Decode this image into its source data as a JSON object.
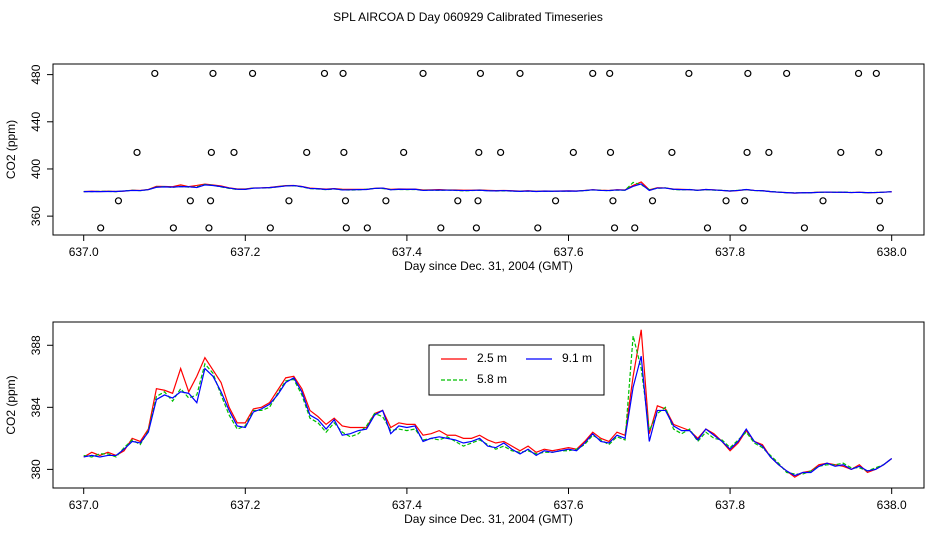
{
  "chart_data": [
    {
      "type": "line",
      "title": "SPL AIRCOA D  Day 060929  Calibrated Timeseries",
      "xlabel": "Day since Dec. 31, 2004 (GMT)",
      "ylabel": "CO2 (ppm)",
      "xlim": [
        636.962,
        638.04
      ],
      "ylim": [
        344,
        489
      ],
      "xticks": [
        {
          "value": 637,
          "label": "637.0"
        },
        {
          "value": 637.2,
          "label": "637.2"
        },
        {
          "value": 637.4,
          "label": "637.4"
        },
        {
          "value": 637.6,
          "label": "637.6"
        },
        {
          "value": 637.8,
          "label": "637.8"
        },
        {
          "value": 638,
          "label": "638.0"
        }
      ],
      "yticks": [
        360,
        400,
        440,
        480
      ],
      "x": [
        637.0,
        637.01,
        637.02,
        637.03,
        637.04,
        637.05,
        637.06,
        637.07,
        637.08,
        637.09,
        637.1,
        637.11,
        637.12,
        637.13,
        637.14,
        637.15,
        637.16,
        637.17,
        637.18,
        637.19,
        637.2,
        637.21,
        637.22,
        637.23,
        637.24,
        637.25,
        637.26,
        637.27,
        637.28,
        637.29,
        637.3,
        637.31,
        637.32,
        637.33,
        637.34,
        637.35,
        637.36,
        637.37,
        637.38,
        637.39,
        637.4,
        637.41,
        637.42,
        637.43,
        637.44,
        637.45,
        637.46,
        637.47,
        637.48,
        637.49,
        637.5,
        637.51,
        637.52,
        637.53,
        637.54,
        637.55,
        637.56,
        637.57,
        637.58,
        637.59,
        637.6,
        637.61,
        637.62,
        637.63,
        637.64,
        637.65,
        637.66,
        637.67,
        637.68,
        637.69,
        637.7,
        637.71,
        637.72,
        637.73,
        637.74,
        637.75,
        637.76,
        637.77,
        637.78,
        637.79,
        637.8,
        637.81,
        637.82,
        637.83,
        637.84,
        637.85,
        637.86,
        637.87,
        637.88,
        637.89,
        637.9,
        637.91,
        637.92,
        637.93,
        637.94,
        637.95,
        637.96,
        637.97,
        637.98,
        637.99,
        638.0
      ],
      "series": [
        {
          "color": "#ff0000",
          "style": "solid",
          "values": [
            380.8,
            381.1,
            380.9,
            381.1,
            380.9,
            381.2,
            382.0,
            381.8,
            382.6,
            385.2,
            385.1,
            384.9,
            386.5,
            385.0,
            386.0,
            387.2,
            386.4,
            385.6,
            384.0,
            383.0,
            383.0,
            383.9,
            384.0,
            384.3,
            385.1,
            385.9,
            386.0,
            385.2,
            383.8,
            383.4,
            382.9,
            383.3,
            382.8,
            382.7,
            382.7,
            382.7,
            383.6,
            383.8,
            382.7,
            383.0,
            382.9,
            382.9,
            382.2,
            382.3,
            382.5,
            382.2,
            382.2,
            382.0,
            382.0,
            382.2,
            381.9,
            381.7,
            381.8,
            381.5,
            381.2,
            381.5,
            381.1,
            381.3,
            381.2,
            381.3,
            381.4,
            381.3,
            381.8,
            382.4,
            382.0,
            381.8,
            382.4,
            382.2,
            386.0,
            389.0,
            382.3,
            384.1,
            383.9,
            382.9,
            382.7,
            382.5,
            382.0,
            382.6,
            382.3,
            381.8,
            381.2,
            381.7,
            382.5,
            381.8,
            381.6,
            380.8,
            380.3,
            379.9,
            379.5,
            379.8,
            379.9,
            380.3,
            380.4,
            380.3,
            380.2,
            380.0,
            380.3,
            379.8,
            380.0,
            380.3,
            380.7
          ]
        },
        {
          "color": "#00c000",
          "style": "dashed",
          "values": [
            380.9,
            380.8,
            381.0,
            381.0,
            380.8,
            381.4,
            381.9,
            381.6,
            382.5,
            384.7,
            385.0,
            384.4,
            385.2,
            384.6,
            384.8,
            386.8,
            386.2,
            384.8,
            383.5,
            382.6,
            382.8,
            383.8,
            383.8,
            384.0,
            384.9,
            385.7,
            385.8,
            384.8,
            383.3,
            383.0,
            382.4,
            383.0,
            382.4,
            382.1,
            382.3,
            382.8,
            383.6,
            383.4,
            382.5,
            382.6,
            382.5,
            382.6,
            381.9,
            382.0,
            381.9,
            382.1,
            381.8,
            381.5,
            381.7,
            381.9,
            381.6,
            381.3,
            381.5,
            381.2,
            381.1,
            381.2,
            381.0,
            381.1,
            381.1,
            381.2,
            381.2,
            381.3,
            381.6,
            382.2,
            381.9,
            381.6,
            382.1,
            381.9,
            388.6,
            386.5,
            382.5,
            383.6,
            384.0,
            382.6,
            382.3,
            382.6,
            381.8,
            382.4,
            382.0,
            381.9,
            381.4,
            381.9,
            382.4,
            381.7,
            381.4,
            380.9,
            380.4,
            379.8,
            379.7,
            379.7,
            379.9,
            380.2,
            380.3,
            380.3,
            380.4,
            380.1,
            380.1,
            379.9,
            380.1,
            380.3,
            380.7
          ]
        },
        {
          "color": "#0000ff",
          "style": "solid",
          "values": [
            380.8,
            380.9,
            380.8,
            380.9,
            380.9,
            381.3,
            381.8,
            381.7,
            382.4,
            384.5,
            384.8,
            384.6,
            385.0,
            384.9,
            384.3,
            386.5,
            386.0,
            385.0,
            383.8,
            382.8,
            382.7,
            383.7,
            383.9,
            384.2,
            384.8,
            385.6,
            385.9,
            385.0,
            383.5,
            383.2,
            382.6,
            383.2,
            382.2,
            382.3,
            382.5,
            382.6,
            383.5,
            383.8,
            382.3,
            382.8,
            382.7,
            382.8,
            381.8,
            382.0,
            382.1,
            382.0,
            381.9,
            381.7,
            381.8,
            382.0,
            381.5,
            381.4,
            381.7,
            381.3,
            381.0,
            381.3,
            380.9,
            381.2,
            381.1,
            381.2,
            381.3,
            381.2,
            381.7,
            382.3,
            381.8,
            381.7,
            382.2,
            382.0,
            385.3,
            387.3,
            381.8,
            383.8,
            383.8,
            382.8,
            382.5,
            382.5,
            381.9,
            382.6,
            382.2,
            381.8,
            381.3,
            381.8,
            382.6,
            381.8,
            381.5,
            380.8,
            380.3,
            379.9,
            379.6,
            379.8,
            379.8,
            380.2,
            380.4,
            380.2,
            380.3,
            380.0,
            380.2,
            379.9,
            380.0,
            380.3,
            380.7
          ]
        }
      ],
      "points": {
        "color": "#000000",
        "x": [
          637.088,
          637.16,
          637.209,
          637.298,
          637.321,
          637.42,
          637.491,
          637.54,
          637.63,
          637.651,
          637.749,
          637.822,
          637.87,
          637.959,
          637.981,
          637.066,
          637.158,
          637.186,
          637.276,
          637.322,
          637.396,
          637.489,
          637.516,
          637.606,
          637.652,
          637.728,
          637.821,
          637.848,
          637.937,
          637.984,
          637.043,
          637.132,
          637.157,
          637.254,
          637.324,
          637.374,
          637.463,
          637.488,
          637.584,
          637.655,
          637.704,
          637.795,
          637.818,
          637.915,
          637.985,
          637.021,
          637.111,
          637.155,
          637.231,
          637.325,
          637.351,
          637.442,
          637.486,
          637.562,
          637.657,
          637.682,
          637.772,
          637.816,
          637.892,
          637.986
        ],
        "y": [
          481,
          481,
          481,
          481,
          481,
          481,
          481,
          481,
          481,
          481,
          481,
          481,
          481,
          481,
          481,
          414,
          414,
          414,
          414,
          414,
          414,
          414,
          414,
          414,
          414,
          414,
          414,
          414,
          414,
          414,
          373,
          373,
          373,
          373,
          373,
          373,
          373,
          373,
          373,
          373,
          373,
          373,
          373,
          373,
          373,
          350,
          350,
          350,
          350,
          350,
          350,
          350,
          350,
          350,
          350,
          350,
          350,
          350,
          350,
          350
        ]
      }
    },
    {
      "type": "line",
      "xlabel": "Day since Dec. 31, 2004 (GMT)",
      "ylabel": "CO2 (ppm)",
      "xlim": [
        636.962,
        638.04
      ],
      "ylim": [
        378.8,
        389.5
      ],
      "xticks": [
        {
          "value": 637,
          "label": "637.0"
        },
        {
          "value": 637.2,
          "label": "637.2"
        },
        {
          "value": 637.4,
          "label": "637.4"
        },
        {
          "value": 637.6,
          "label": "637.6"
        },
        {
          "value": 637.8,
          "label": "637.8"
        },
        {
          "value": 638,
          "label": "638.0"
        }
      ],
      "yticks": [
        380,
        384,
        388
      ],
      "legend": "top",
      "x": [
        637.0,
        637.01,
        637.02,
        637.03,
        637.04,
        637.05,
        637.06,
        637.07,
        637.08,
        637.09,
        637.1,
        637.11,
        637.12,
        637.13,
        637.14,
        637.15,
        637.16,
        637.17,
        637.18,
        637.19,
        637.2,
        637.21,
        637.22,
        637.23,
        637.24,
        637.25,
        637.26,
        637.27,
        637.28,
        637.29,
        637.3,
        637.31,
        637.32,
        637.33,
        637.34,
        637.35,
        637.36,
        637.37,
        637.38,
        637.39,
        637.4,
        637.41,
        637.42,
        637.43,
        637.44,
        637.45,
        637.46,
        637.47,
        637.48,
        637.49,
        637.5,
        637.51,
        637.52,
        637.53,
        637.54,
        637.55,
        637.56,
        637.57,
        637.58,
        637.59,
        637.6,
        637.61,
        637.62,
        637.63,
        637.64,
        637.65,
        637.66,
        637.67,
        637.68,
        637.69,
        637.7,
        637.71,
        637.72,
        637.73,
        637.74,
        637.75,
        637.76,
        637.77,
        637.78,
        637.79,
        637.8,
        637.81,
        637.82,
        637.83,
        637.84,
        637.85,
        637.86,
        637.87,
        637.88,
        637.89,
        637.9,
        637.91,
        637.92,
        637.93,
        637.94,
        637.95,
        637.96,
        637.97,
        637.98,
        637.99,
        638.0
      ],
      "series": [
        {
          "name": "2.5 m",
          "color": "#ff0000",
          "style": "solid",
          "values": [
            380.8,
            381.1,
            380.9,
            381.1,
            380.9,
            381.2,
            382.0,
            381.8,
            382.6,
            385.2,
            385.1,
            384.9,
            386.5,
            385.0,
            386.0,
            387.2,
            386.4,
            385.6,
            384.0,
            383.0,
            383.0,
            383.9,
            384.0,
            384.3,
            385.1,
            385.9,
            386.0,
            385.2,
            383.8,
            383.4,
            382.9,
            383.3,
            382.8,
            382.7,
            382.7,
            382.7,
            383.6,
            383.8,
            382.7,
            383.0,
            382.9,
            382.9,
            382.2,
            382.3,
            382.5,
            382.2,
            382.2,
            382.0,
            382.0,
            382.2,
            381.9,
            381.7,
            381.8,
            381.5,
            381.2,
            381.5,
            381.1,
            381.3,
            381.2,
            381.3,
            381.4,
            381.3,
            381.8,
            382.4,
            382.0,
            381.8,
            382.4,
            382.2,
            386.0,
            389.0,
            382.3,
            384.1,
            383.9,
            382.9,
            382.7,
            382.5,
            382.0,
            382.6,
            382.3,
            381.8,
            381.2,
            381.7,
            382.5,
            381.8,
            381.6,
            380.8,
            380.3,
            379.9,
            379.5,
            379.8,
            379.9,
            380.3,
            380.4,
            380.3,
            380.2,
            380.0,
            380.3,
            379.8,
            380.0,
            380.3,
            380.7
          ]
        },
        {
          "name": "5.8 m",
          "color": "#00c000",
          "style": "dashed",
          "values": [
            380.9,
            380.8,
            381.0,
            381.0,
            380.8,
            381.4,
            381.9,
            381.6,
            382.5,
            384.7,
            385.0,
            384.4,
            385.2,
            384.6,
            384.8,
            386.8,
            386.2,
            384.8,
            383.5,
            382.6,
            382.8,
            383.8,
            383.8,
            384.0,
            384.9,
            385.7,
            385.8,
            384.8,
            383.3,
            383.0,
            382.4,
            383.0,
            382.4,
            382.1,
            382.3,
            382.8,
            383.6,
            383.4,
            382.5,
            382.6,
            382.5,
            382.6,
            381.9,
            382.0,
            381.9,
            382.1,
            381.8,
            381.5,
            381.7,
            381.9,
            381.6,
            381.3,
            381.5,
            381.2,
            381.1,
            381.2,
            381.0,
            381.1,
            381.1,
            381.2,
            381.2,
            381.3,
            381.6,
            382.2,
            381.9,
            381.6,
            382.1,
            381.9,
            388.6,
            386.5,
            382.5,
            383.6,
            384.0,
            382.6,
            382.3,
            382.6,
            381.8,
            382.4,
            382.0,
            381.9,
            381.4,
            381.9,
            382.4,
            381.7,
            381.4,
            380.9,
            380.4,
            379.8,
            379.7,
            379.7,
            379.9,
            380.2,
            380.3,
            380.3,
            380.4,
            380.1,
            380.1,
            379.9,
            380.1,
            380.3,
            380.7
          ]
        },
        {
          "name": "9.1 m",
          "color": "#0000ff",
          "style": "solid",
          "values": [
            380.8,
            380.9,
            380.8,
            380.9,
            380.9,
            381.3,
            381.8,
            381.7,
            382.4,
            384.5,
            384.8,
            384.6,
            385.0,
            384.9,
            384.3,
            386.5,
            386.0,
            385.0,
            383.8,
            382.8,
            382.7,
            383.7,
            383.9,
            384.2,
            384.8,
            385.6,
            385.9,
            385.0,
            383.5,
            383.2,
            382.6,
            383.2,
            382.2,
            382.3,
            382.5,
            382.6,
            383.5,
            383.8,
            382.3,
            382.8,
            382.7,
            382.8,
            381.8,
            382.0,
            382.1,
            382.0,
            381.9,
            381.7,
            381.8,
            382.0,
            381.5,
            381.4,
            381.7,
            381.3,
            381.0,
            381.3,
            380.9,
            381.2,
            381.1,
            381.2,
            381.3,
            381.2,
            381.7,
            382.3,
            381.8,
            381.7,
            382.2,
            382.0,
            385.3,
            387.3,
            381.8,
            383.8,
            383.8,
            382.8,
            382.5,
            382.5,
            381.9,
            382.6,
            382.2,
            381.8,
            381.3,
            381.8,
            382.6,
            381.8,
            381.5,
            380.8,
            380.3,
            379.9,
            379.6,
            379.8,
            379.8,
            380.2,
            380.4,
            380.2,
            380.3,
            380.0,
            380.2,
            379.9,
            380.0,
            380.3,
            380.7
          ]
        }
      ]
    }
  ]
}
